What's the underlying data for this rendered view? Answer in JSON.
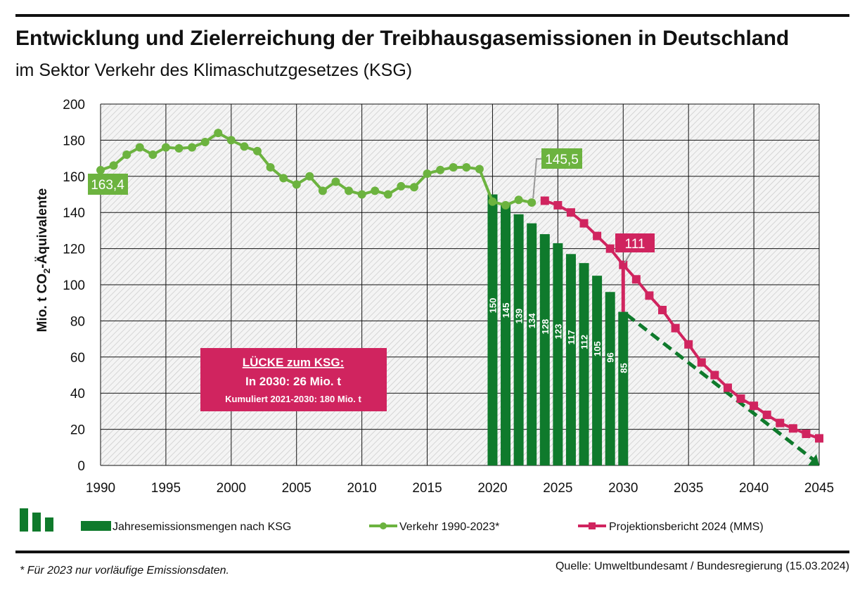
{
  "title": "Entwicklung und Zielerreichung der Treibhausgasemissionen in Deutschland",
  "subtitle": "im Sektor Verkehr des Klimaschutzgesetzes (KSG)",
  "footnote": "* Für 2023 nur vorläufige Emissionsdaten.",
  "source": "Quelle: Umweltbundesamt / Bundesregierung  (15.03.2024)",
  "gap_box": {
    "heading": "LÜCKE zum KSG:",
    "line1": "In 2030: 26 Mio. t",
    "line2": "Kumuliert 2021-2030: 180 Mio. t"
  },
  "colors": {
    "bars": "#0f7a2c",
    "history": "#6cb33f",
    "projection": "#d0245f",
    "target_path": "#0f7a2c"
  },
  "chart_data": {
    "type": "bar+line",
    "ylabel": "Mio. t CO2-Äquivalente",
    "ylabel_parts": {
      "pre": "Mio. t CO",
      "sub": "2",
      "post": "-Äquivalente"
    },
    "ylim": [
      0,
      200
    ],
    "xlim": [
      1990,
      2045
    ],
    "yticks": [
      "0",
      "20",
      "40",
      "60",
      "80",
      "100",
      "120",
      "140",
      "160",
      "180",
      "200"
    ],
    "xticks": [
      "1990",
      "1995",
      "2000",
      "2005",
      "2010",
      "2015",
      "2020",
      "2025",
      "2030",
      "2035",
      "2040",
      "2045"
    ],
    "grid": true,
    "legend_position": "bottom",
    "bars": {
      "name": "Jahresemissionsmengen nach KSG",
      "x": [
        2020,
        2021,
        2022,
        2023,
        2024,
        2025,
        2026,
        2027,
        2028,
        2029,
        2030
      ],
      "values": [
        150,
        145,
        139,
        134,
        128,
        123,
        117,
        112,
        105,
        96,
        85
      ],
      "labels": [
        "150",
        "145",
        "139",
        "134",
        "128",
        "123",
        "117",
        "112",
        "105",
        "96",
        "85"
      ]
    },
    "series": [
      {
        "name": "Verkehr 1990-2023*",
        "x": [
          1990,
          1991,
          1992,
          1993,
          1994,
          1995,
          1996,
          1997,
          1998,
          1999,
          2000,
          2001,
          2002,
          2003,
          2004,
          2005,
          2006,
          2007,
          2008,
          2009,
          2010,
          2011,
          2012,
          2013,
          2014,
          2015,
          2016,
          2017,
          2018,
          2019,
          2020,
          2021,
          2022,
          2023
        ],
        "values": [
          163.4,
          166,
          172,
          176,
          172,
          176,
          175.5,
          176,
          179,
          184,
          180,
          176.5,
          174,
          165,
          159,
          155.5,
          160,
          152,
          157,
          152,
          150,
          152,
          150,
          154.5,
          154,
          161.5,
          163.5,
          165,
          165,
          164,
          146,
          144,
          147,
          145.5
        ]
      },
      {
        "name": "Projektionsbericht 2024 (MMS)",
        "x": [
          2024,
          2025,
          2026,
          2027,
          2028,
          2029,
          2030,
          2031,
          2032,
          2033,
          2034,
          2035,
          2036,
          2037,
          2038,
          2039,
          2040,
          2041,
          2042,
          2043,
          2044,
          2045
        ],
        "values": [
          146.5,
          144,
          140,
          134,
          127,
          120,
          111,
          103,
          94,
          86,
          76,
          67,
          57,
          50,
          43,
          37,
          33,
          28,
          23.5,
          20.5,
          17.5,
          15
        ]
      }
    ],
    "target_path": {
      "x": [
        2030,
        2045
      ],
      "values": [
        85,
        0
      ]
    },
    "annotations": [
      {
        "text": "163,4",
        "x": 1990,
        "value": 163.4
      },
      {
        "text": "145,5",
        "x": 2023,
        "value": 145.5
      },
      {
        "text": "111",
        "x": 2030,
        "value": 111
      }
    ]
  }
}
